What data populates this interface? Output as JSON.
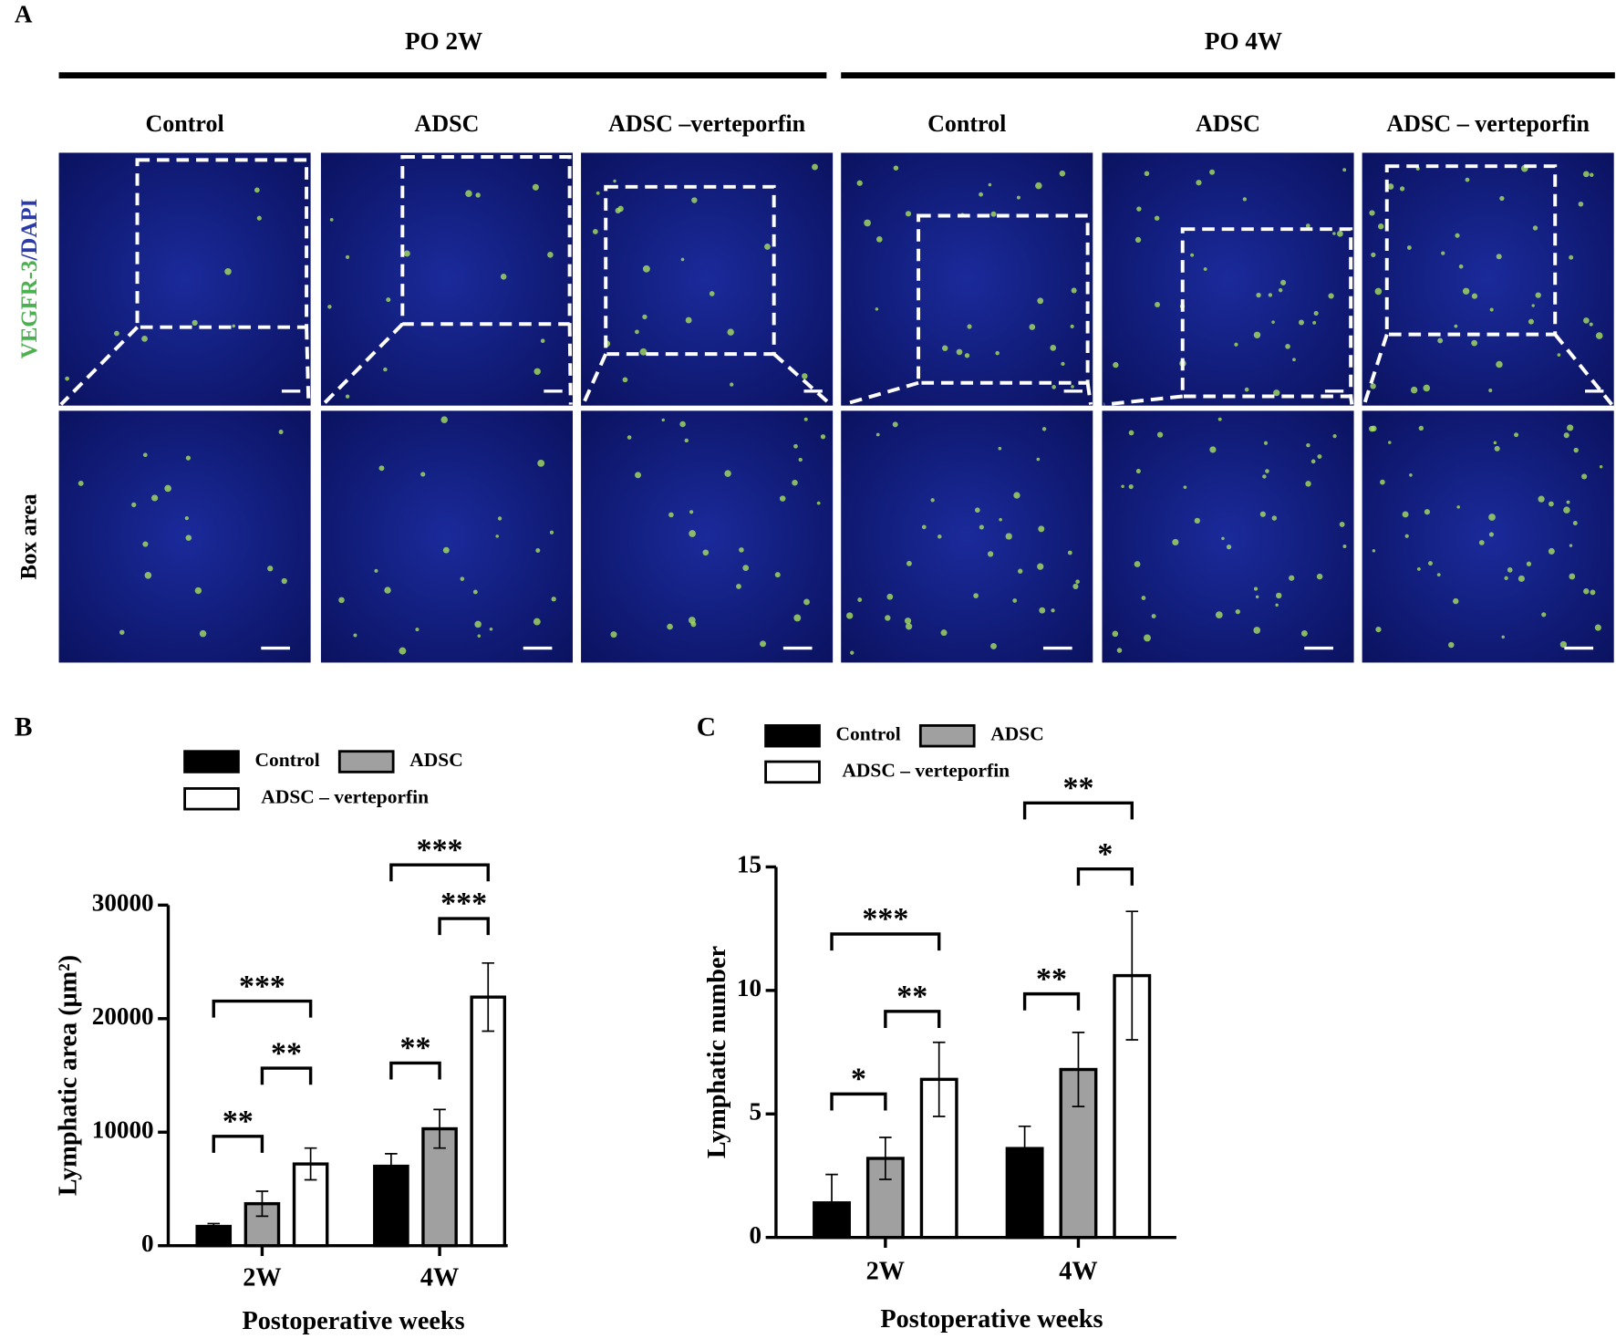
{
  "panel_a": {
    "label": "A",
    "groups": [
      "PO 2W",
      "PO 4W"
    ],
    "columns": [
      "Control",
      "ADSC",
      "ADSC –verteporfin",
      "Control",
      "ADSC",
      "ADSC – verteporfin"
    ],
    "row_labels": [
      {
        "marker": "VEGFR-3",
        "stain": "/DAPI"
      },
      "Box area"
    ]
  },
  "chart_data": [
    {
      "type": "bar",
      "label": "B",
      "x_label": "Postoperative weeks",
      "y_label": "Lymphatic area (μm²)",
      "categories": [
        "2W",
        "4W"
      ],
      "series": [
        {
          "name": "Control",
          "color": "#000000",
          "values": [
            1700,
            7000
          ],
          "errors": [
            250,
            1100
          ]
        },
        {
          "name": "ADSC",
          "color": "#a0a0a0",
          "values": [
            3700,
            10300
          ],
          "errors": [
            1100,
            1700
          ]
        },
        {
          "name": "ADSC – verteporfin",
          "color": "#ffffff",
          "values": [
            7200,
            21900
          ],
          "errors": [
            1400,
            3000
          ]
        }
      ],
      "ylim": [
        0,
        30000
      ],
      "yticks": [
        0,
        10000,
        20000,
        30000
      ],
      "annotations": [
        "**",
        "**",
        "***",
        "**",
        "***",
        "***"
      ]
    },
    {
      "type": "bar",
      "label": "C",
      "x_label": "Postoperative weeks",
      "y_label": "Lymphatic number",
      "categories": [
        "2W",
        "4W"
      ],
      "series": [
        {
          "name": "Control",
          "color": "#000000",
          "values": [
            1.4,
            3.6
          ],
          "errors": [
            1.15,
            0.9
          ]
        },
        {
          "name": "ADSC",
          "color": "#a0a0a0",
          "values": [
            3.2,
            6.8
          ],
          "errors": [
            0.85,
            1.5
          ]
        },
        {
          "name": "ADSC – verteporfin",
          "color": "#ffffff",
          "values": [
            6.4,
            10.6
          ],
          "errors": [
            1.5,
            2.6
          ]
        }
      ],
      "ylim": [
        0,
        15
      ],
      "yticks": [
        0,
        5,
        10,
        15
      ],
      "annotations": [
        "*",
        "**",
        "***",
        "**",
        "*",
        "**"
      ]
    }
  ]
}
